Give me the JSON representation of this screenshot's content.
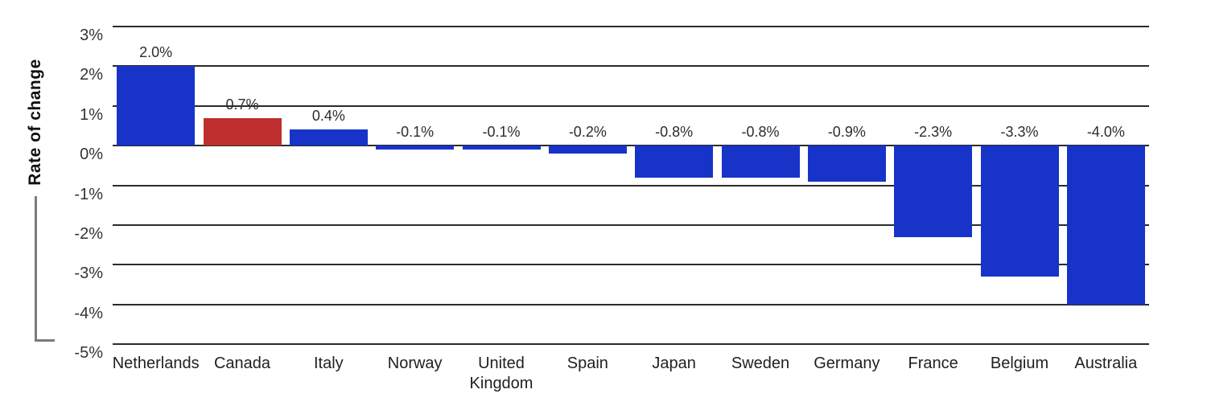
{
  "colors": {
    "bar_default": "#1733c8",
    "bar_highlight": "#bf2f2f",
    "grid": "#2b2b2b",
    "text": "#2d2d2d",
    "tick_text": "#333333",
    "axis_bracket": "#7b7b7b",
    "background": "#ffffff"
  },
  "chart_data": {
    "type": "bar",
    "title": "",
    "ylabel": "Rate of change",
    "xlabel": "",
    "categories": [
      "Netherlands",
      "Canada",
      "Italy",
      "Norway",
      "United Kingdom",
      "Spain",
      "Japan",
      "Sweden",
      "Germany",
      "France",
      "Belgium",
      "Australia"
    ],
    "values": [
      2.0,
      0.7,
      0.4,
      -0.1,
      -0.1,
      -0.2,
      -0.8,
      -0.8,
      -0.9,
      -2.3,
      -3.3,
      -4.0
    ],
    "value_labels": [
      "2.0%",
      "0.7%",
      "0.4%",
      "-0.1%",
      "-0.1%",
      "-0.2%",
      "-0.8%",
      "-0.8%",
      "-0.9%",
      "-2.3%",
      "-3.3%",
      "-4.0%"
    ],
    "bar_colors": [
      "#1733c8",
      "#bf2f2f",
      "#1733c8",
      "#1733c8",
      "#1733c8",
      "#1733c8",
      "#1733c8",
      "#1733c8",
      "#1733c8",
      "#1733c8",
      "#1733c8",
      "#1733c8"
    ],
    "highlight_index": 1,
    "yticks": [
      "3%",
      "2%",
      "1%",
      "0%",
      "-1%",
      "-2%",
      "-3%",
      "-4%",
      "-5%"
    ],
    "ytick_values": [
      3,
      2,
      1,
      0,
      -1,
      -2,
      -3,
      -4,
      -5
    ],
    "ylim": [
      -5,
      3
    ],
    "grid": "horizontal-only",
    "legend": "none"
  }
}
